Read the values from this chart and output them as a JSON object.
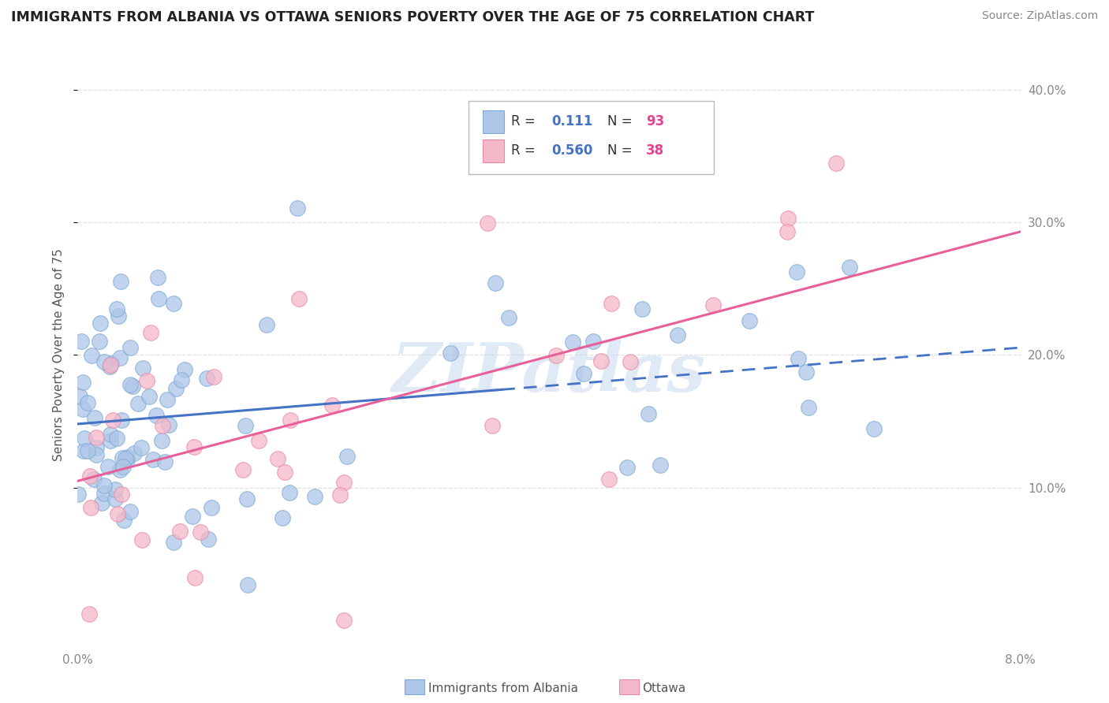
{
  "title": "IMMIGRANTS FROM ALBANIA VS OTTAWA SENIORS POVERTY OVER THE AGE OF 75 CORRELATION CHART",
  "source": "Source: ZipAtlas.com",
  "legend_label1": "Immigrants from Albania",
  "legend_label2": "Ottawa",
  "ylabel": "Seniors Poverty Over the Age of 75",
  "x_min": 0.0,
  "x_max": 0.08,
  "y_min": -0.02,
  "y_max": 0.42,
  "r_albania": 0.111,
  "n_albania": 93,
  "r_ottawa": 0.56,
  "n_ottawa": 38,
  "blue_fill": "#aec6e8",
  "blue_edge": "#7baad4",
  "blue_line_color": "#4472c4",
  "pink_fill": "#f5b8c8",
  "pink_edge": "#e888aa",
  "pink_line_color": "#e8609a",
  "watermark_color": "#c8d8ef",
  "alb_line_solid_end": 0.036,
  "alb_slope": 0.72,
  "alb_intercept": 0.148,
  "ott_slope": 2.35,
  "ott_intercept": 0.105,
  "grid_color": "#e0e0e0",
  "tick_color": "#888888",
  "title_color": "#222222",
  "source_color": "#888888"
}
